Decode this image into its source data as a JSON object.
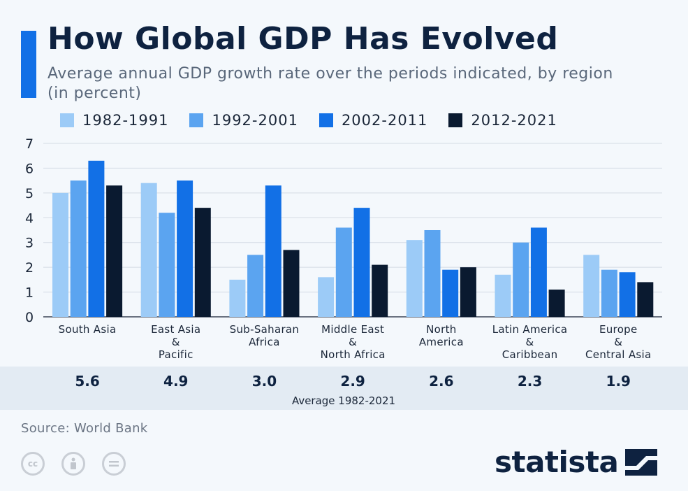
{
  "header": {
    "title": "How Global GDP Has Evolved",
    "subtitle": "Average annual GDP growth rate over the periods indicated, by region (in percent)"
  },
  "chart_data": {
    "type": "bar",
    "title": "How Global GDP Has Evolved",
    "subtitle": "Average annual GDP growth rate over the periods indicated, by region (in percent)",
    "categories": [
      [
        "South Asia"
      ],
      [
        "East Asia",
        "&",
        "Pacific"
      ],
      [
        "Sub-Saharan",
        "Africa"
      ],
      [
        "Middle East",
        "&",
        "North Africa"
      ],
      [
        "North",
        "America"
      ],
      [
        "Latin America",
        "&",
        "Caribbean"
      ],
      [
        "Europe",
        "&",
        "Central Asia"
      ]
    ],
    "series": [
      {
        "name": "1982-1991",
        "color": "#9ccbf7",
        "values": [
          5.0,
          5.4,
          1.5,
          1.6,
          3.1,
          1.7,
          2.5
        ]
      },
      {
        "name": "1992-2001",
        "color": "#5ba4f0",
        "values": [
          5.5,
          4.2,
          2.5,
          3.6,
          3.5,
          3.0,
          1.9
        ]
      },
      {
        "name": "2002-2011",
        "color": "#1270e6",
        "values": [
          6.3,
          5.5,
          5.3,
          4.4,
          1.9,
          3.6,
          1.8
        ]
      },
      {
        "name": "2012-2021",
        "color": "#0a1a30",
        "values": [
          5.3,
          4.4,
          2.7,
          2.1,
          2.0,
          1.1,
          1.4
        ]
      }
    ],
    "ylim": [
      0,
      7
    ],
    "yticks": [
      "0",
      "1",
      "2",
      "3",
      "4",
      "5",
      "6",
      "7"
    ],
    "grid": true,
    "legend_position": "top",
    "averages": [
      "5.6",
      "4.9",
      "3.0",
      "2.9",
      "2.6",
      "2.3",
      "1.9"
    ],
    "averages_label": "Average 1982-2021"
  },
  "footer": {
    "source": "Source: World Bank",
    "logo_text": "statista",
    "license_icons": [
      "cc-icon",
      "attribution-icon",
      "no-derivatives-icon"
    ]
  }
}
